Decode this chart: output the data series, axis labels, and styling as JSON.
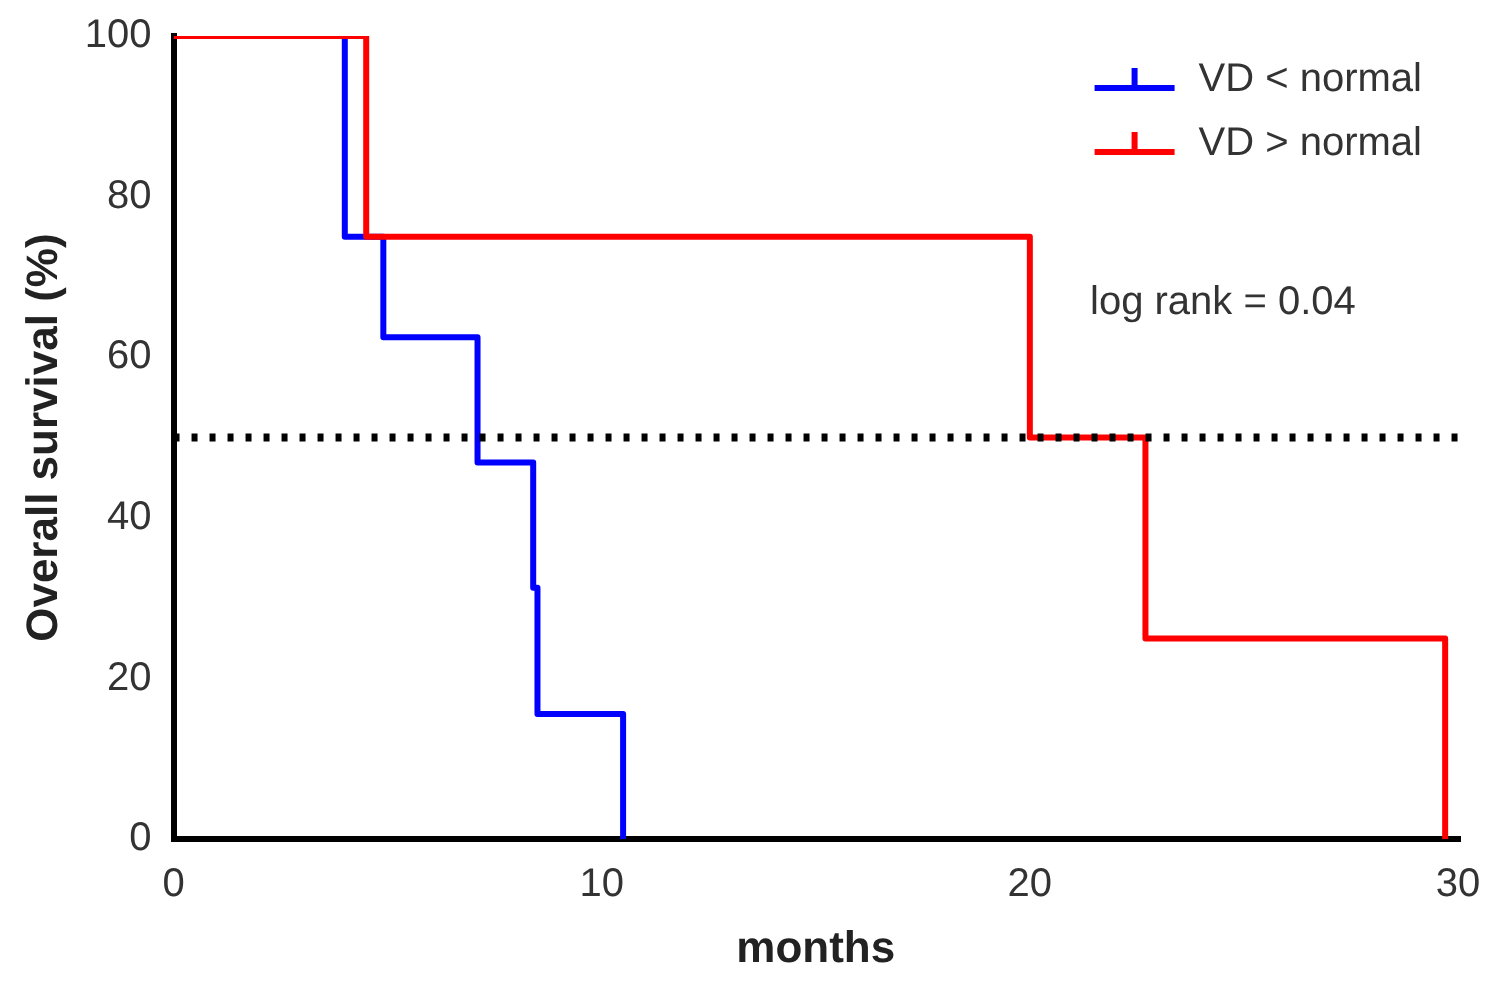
{
  "chart_data": {
    "type": "step",
    "xlabel": "months",
    "ylabel": "Overall survival (%)",
    "series": [
      {
        "name": "VD < normal",
        "color": "#0000ff",
        "x": [
          0,
          4,
          4.9,
          7.1,
          8.4,
          8.5,
          10.5
        ],
        "values": [
          100,
          75,
          62.5,
          46.9,
          31.3,
          15.6,
          0
        ]
      },
      {
        "name": "VD > normal",
        "color": "#ff0000",
        "x": [
          0,
          4.5,
          20,
          22.7,
          29.7
        ],
        "values": [
          100,
          75,
          50,
          25,
          0
        ]
      }
    ],
    "xlim": [
      0,
      30
    ],
    "xticks": [
      0,
      10,
      20,
      30
    ],
    "ylim": [
      0,
      100
    ],
    "yticks": [
      0,
      20,
      40,
      60,
      80,
      100
    ],
    "ref_lines": [
      {
        "axis": "y",
        "value": 50,
        "color": "#000000",
        "line_style": "dotted"
      }
    ],
    "annotations": [
      "log rank = 0.04"
    ],
    "grid": false,
    "legend": "top right",
    "marker": "none",
    "line_style": "solid"
  }
}
